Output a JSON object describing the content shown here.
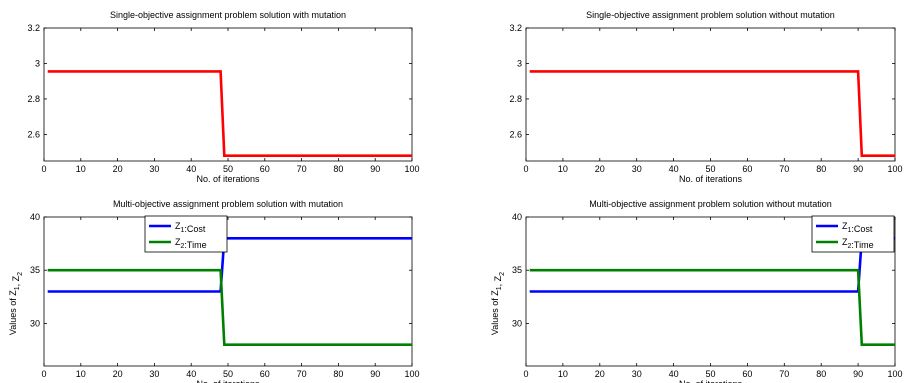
{
  "chart_data": [
    {
      "type": "line",
      "title": "Single-objective assignment problem solution with mutation",
      "xlabel": "No. of iterations",
      "ylabel": "",
      "xlim": [
        0,
        100
      ],
      "ylim": [
        2.45,
        3.2
      ],
      "xticks": [
        0,
        10,
        20,
        30,
        40,
        50,
        60,
        70,
        80,
        90,
        100
      ],
      "yticks": [
        2.6,
        2.8,
        3,
        3.2
      ],
      "ytick_labels": [
        "2.6",
        "2.8",
        "3",
        "3.2"
      ],
      "grid": false,
      "series": [
        {
          "color": "#ff0000",
          "x": [
            1,
            48,
            49,
            100
          ],
          "y": [
            2.955,
            2.955,
            2.48,
            2.48
          ]
        }
      ]
    },
    {
      "type": "line",
      "title": "Single-objective assignment problem solution without mutation",
      "xlabel": "No. of iterations",
      "ylabel": "",
      "xlim": [
        0,
        100
      ],
      "ylim": [
        2.45,
        3.2
      ],
      "xticks": [
        0,
        10,
        20,
        30,
        40,
        50,
        60,
        70,
        80,
        90,
        100
      ],
      "yticks": [
        2.6,
        2.8,
        3,
        3.2
      ],
      "ytick_labels": [
        "2.6",
        "2.8",
        "3",
        "3.2"
      ],
      "grid": false,
      "series": [
        {
          "color": "#ff0000",
          "x": [
            1,
            90,
            91,
            100
          ],
          "y": [
            2.955,
            2.955,
            2.48,
            2.48
          ]
        }
      ]
    },
    {
      "type": "line",
      "title": "Multi-objective assignment problem solution with mutation",
      "xlabel": "No. of iterations",
      "ylabel": "Values of Z1, Z2",
      "xlim": [
        0,
        100
      ],
      "ylim": [
        26,
        40
      ],
      "xticks": [
        0,
        10,
        20,
        30,
        40,
        50,
        60,
        70,
        80,
        90,
        100
      ],
      "yticks": [
        30,
        35,
        40
      ],
      "ytick_labels": [
        "30",
        "35",
        "40"
      ],
      "grid": false,
      "legend": "top-center",
      "series": [
        {
          "name": "Z1:Cost",
          "color": "#0000ff",
          "x": [
            1,
            48,
            49,
            100
          ],
          "y": [
            33,
            33,
            38,
            38
          ]
        },
        {
          "name": "Z2:Time",
          "color": "#008000",
          "x": [
            1,
            48,
            49,
            100
          ],
          "y": [
            35,
            35,
            28,
            28
          ]
        }
      ]
    },
    {
      "type": "line",
      "title": "Multi-objective assignment problem solution without mutation",
      "xlabel": "No. of iterations",
      "ylabel": "Values of Z1, Z2",
      "xlim": [
        0,
        100
      ],
      "ylim": [
        26,
        40
      ],
      "xticks": [
        0,
        10,
        20,
        30,
        40,
        50,
        60,
        70,
        80,
        90,
        100
      ],
      "yticks": [
        30,
        35,
        40
      ],
      "ytick_labels": [
        "30",
        "35",
        "40"
      ],
      "grid": false,
      "legend": "top-right",
      "series": [
        {
          "name": "Z1:Cost",
          "color": "#0000ff",
          "x": [
            1,
            90,
            91,
            100
          ],
          "y": [
            33,
            33,
            38,
            38
          ]
        },
        {
          "name": "Z2:Time",
          "color": "#008000",
          "x": [
            1,
            90,
            91,
            100
          ],
          "y": [
            35,
            35,
            28,
            28
          ]
        }
      ]
    }
  ]
}
